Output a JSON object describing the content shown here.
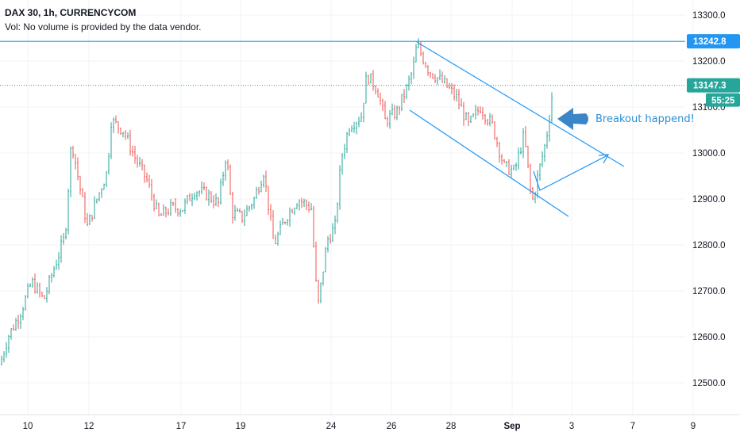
{
  "header": {
    "title": "DAX 30, 1h, CURRENCYCOM",
    "volume_note": "Vol: No volume is provided by the data vendor."
  },
  "colors": {
    "up": "#26a69a",
    "down": "#ef5350",
    "drawing": "#2196f3",
    "resistance_line": "#2196f3",
    "last_price_tag": "#26a69a",
    "annotation_text": "#2a8fd6",
    "grid": "#f0f3fa"
  },
  "chart_data": {
    "type": "candlestick",
    "title": "DAX 30, 1h, CURRENCYCOM",
    "ylim": [
      12450,
      13350
    ],
    "y_ticks": [
      12500,
      12600,
      12700,
      12800,
      12900,
      13000,
      13100,
      13200,
      13300
    ],
    "y_tick_labels": [
      "12500.0",
      "12600.0",
      "12700.0",
      "12800.0",
      "12900.0",
      "13000.0",
      "13100.0",
      "13200.0",
      "13300.0"
    ],
    "x_tick_labels": [
      "10",
      "12",
      "17",
      "19",
      "24",
      "26",
      "28",
      "Sep",
      "3",
      "7",
      "9"
    ],
    "horizontal_line": {
      "value": 13242.8,
      "label": "13242.8"
    },
    "last_price": {
      "value": 13147.3,
      "label": "13147.3",
      "countdown": "55:25"
    },
    "channel": {
      "upper": [
        [
          13240,
          13010
        ]
      ],
      "lower": [
        [
          13090,
          12860
        ]
      ]
    },
    "annotation": "Breakout happend!",
    "grid": true,
    "series_keypoints": [
      [
        0,
        12540
      ],
      [
        10,
        12600
      ],
      [
        25,
        12650
      ],
      [
        40,
        12720
      ],
      [
        55,
        12680
      ],
      [
        70,
        12760
      ],
      [
        82,
        12820
      ],
      [
        90,
        13030
      ],
      [
        100,
        12930
      ],
      [
        110,
        12840
      ],
      [
        122,
        12900
      ],
      [
        135,
        12960
      ],
      [
        140,
        13070
      ],
      [
        155,
        13050
      ],
      [
        170,
        12990
      ],
      [
        185,
        12940
      ],
      [
        200,
        12860
      ],
      [
        215,
        12880
      ],
      [
        230,
        12880
      ],
      [
        245,
        12920
      ],
      [
        260,
        12910
      ],
      [
        275,
        12890
      ],
      [
        285,
        13000
      ],
      [
        292,
        12870
      ],
      [
        305,
        12860
      ],
      [
        320,
        12900
      ],
      [
        332,
        12960
      ],
      [
        345,
        12800
      ],
      [
        360,
        12860
      ],
      [
        375,
        12900
      ],
      [
        392,
        12880
      ],
      [
        400,
        12660
      ],
      [
        412,
        12810
      ],
      [
        422,
        12840
      ],
      [
        430,
        12990
      ],
      [
        440,
        13060
      ],
      [
        455,
        13080
      ],
      [
        462,
        13170
      ],
      [
        475,
        13140
      ],
      [
        485,
        13070
      ],
      [
        500,
        13090
      ],
      [
        512,
        13140
      ],
      [
        520,
        13180
      ],
      [
        525,
        13235
      ],
      [
        540,
        13180
      ],
      [
        560,
        13150
      ],
      [
        575,
        13120
      ],
      [
        590,
        13060
      ],
      [
        605,
        13100
      ],
      [
        620,
        13060
      ],
      [
        635,
        12970
      ],
      [
        648,
        12960
      ],
      [
        660,
        13040
      ],
      [
        670,
        12890
      ],
      [
        680,
        12970
      ],
      [
        688,
        13030
      ],
      [
        697,
        13150
      ]
    ]
  }
}
